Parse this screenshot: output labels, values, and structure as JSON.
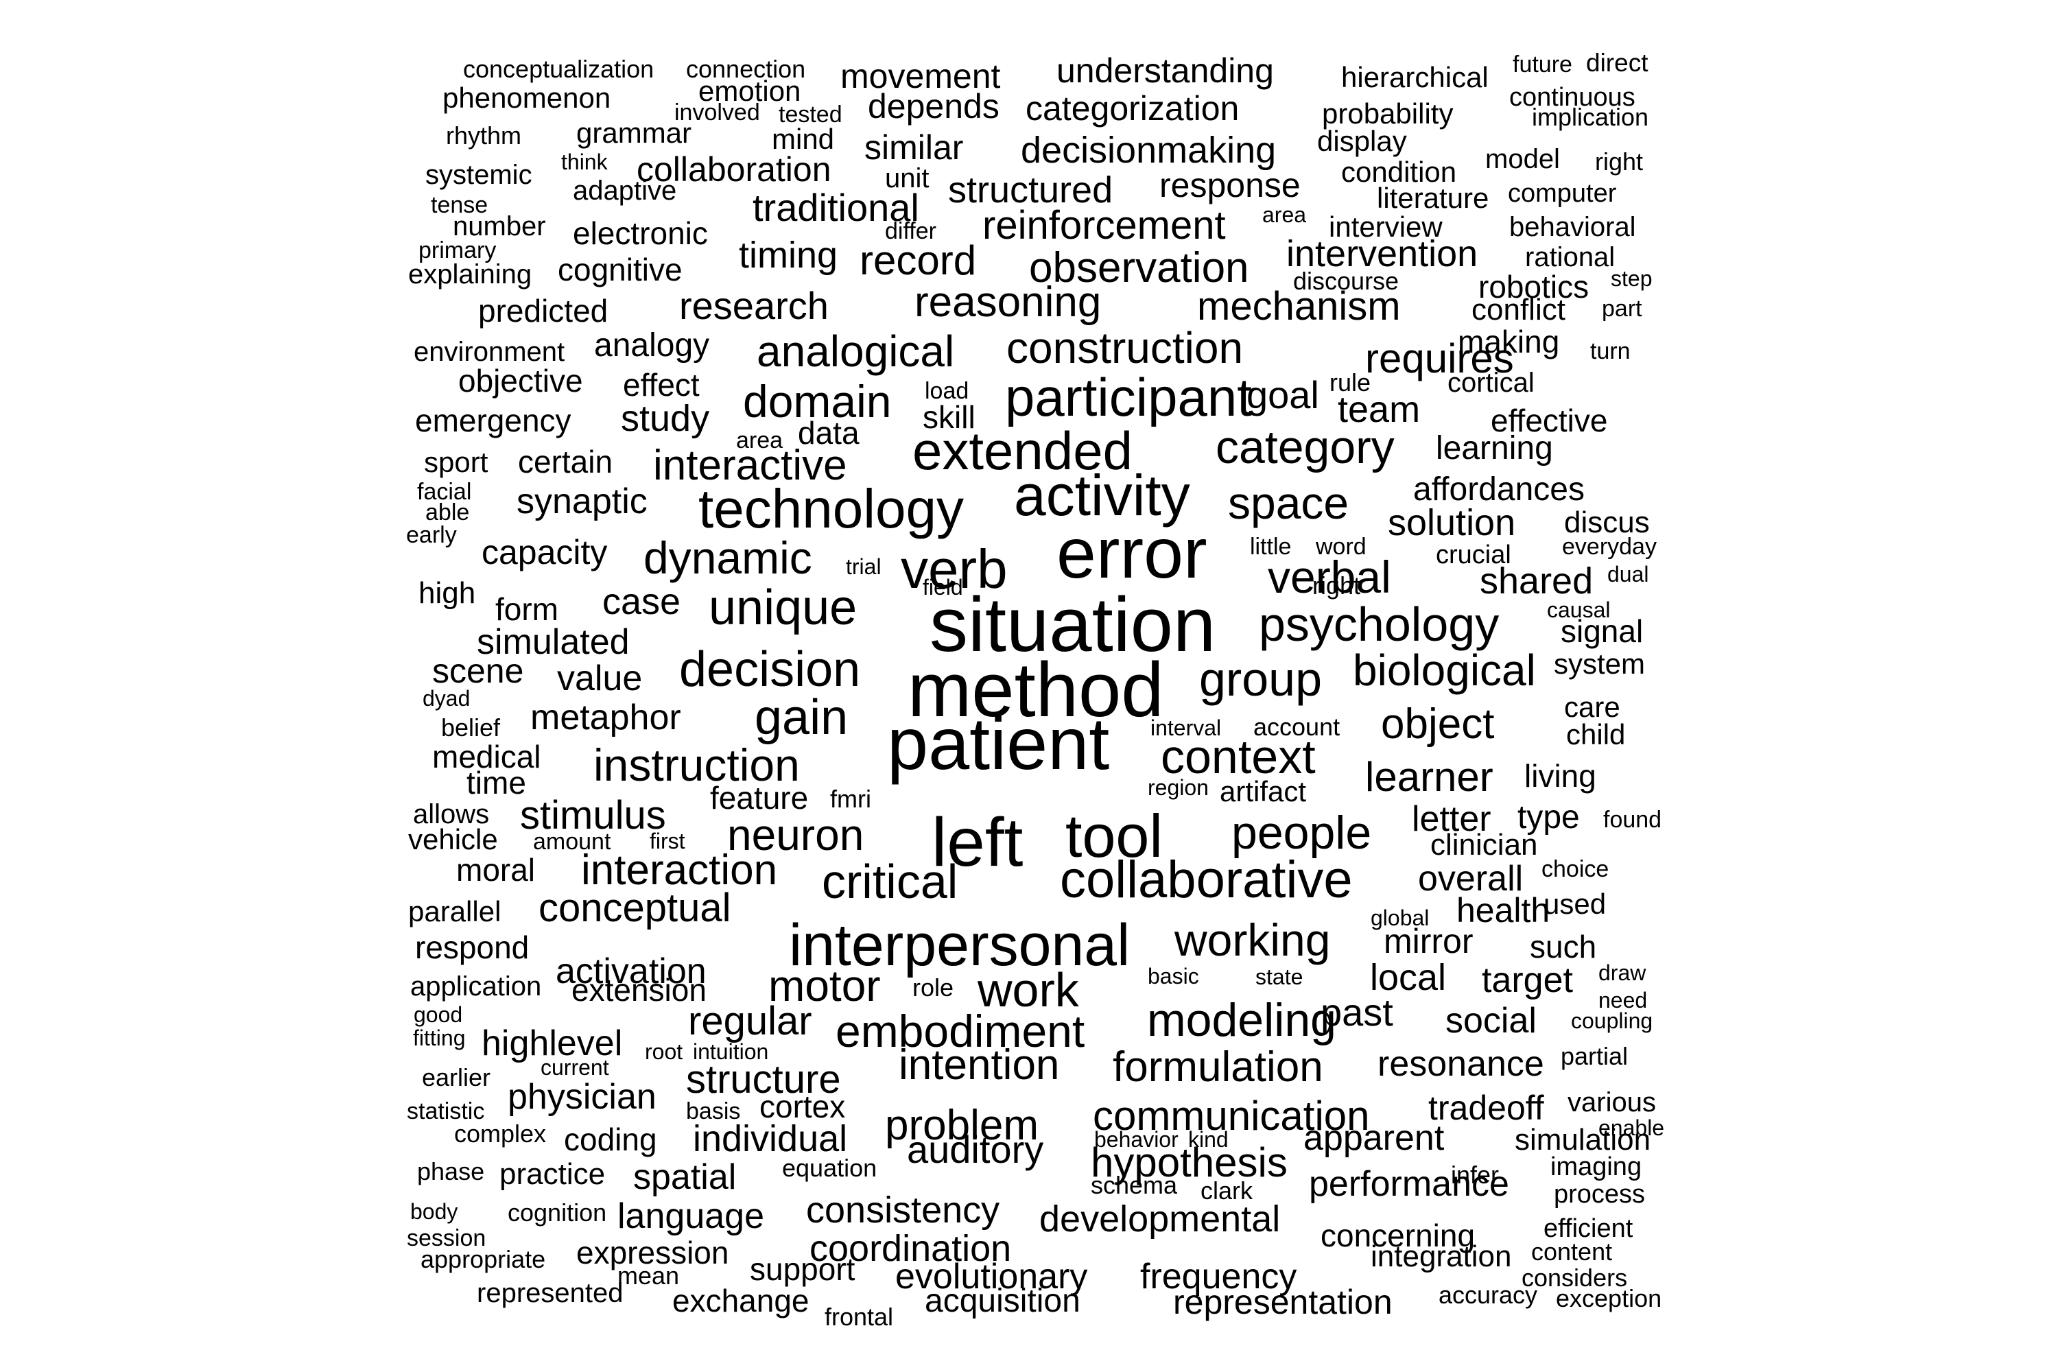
{
  "wordcloud": {
    "words": [
      "conceptualization",
      "connection",
      "future",
      "direct",
      "phenomenon",
      "emotion",
      "movement",
      "understanding",
      "hierarchical",
      "continuous",
      "involved",
      "tested",
      "depends",
      "categorization",
      "probability",
      "implication",
      "rhythm",
      "grammar",
      "mind",
      "similar",
      "decisionmaking",
      "display",
      "model",
      "right",
      "systemic",
      "think",
      "collaboration",
      "unit",
      "response",
      "condition",
      "tense",
      "adaptive",
      "structured",
      "literature",
      "computer",
      "traditional",
      "area",
      "number",
      "electronic",
      "differ",
      "reinforcement",
      "interview",
      "behavioral",
      "primary",
      "timing",
      "intervention",
      "rational",
      "explaining",
      "cognitive",
      "record",
      "observation",
      "discourse",
      "robotics",
      "step",
      "predicted",
      "research",
      "reasoning",
      "mechanism",
      "conflict",
      "part",
      "environment",
      "analogy",
      "analogical",
      "construction",
      "making",
      "requires",
      "turn",
      "objective",
      "effect",
      "load",
      "goal",
      "rule",
      "cortical",
      "emergency",
      "study",
      "domain",
      "participant",
      "skill",
      "team",
      "effective",
      "area",
      "data",
      "sport",
      "certain",
      "extended",
      "category",
      "learning",
      "facial",
      "interactive",
      "affordances",
      "able",
      "synaptic",
      "technology",
      "activity",
      "space",
      "early",
      "solution",
      "discus",
      "capacity",
      "little",
      "word",
      "everyday",
      "dynamic",
      "error",
      "crucial",
      "trial",
      "verb",
      "field",
      "right",
      "dual",
      "high",
      "verbal",
      "shared",
      "form",
      "case",
      "unique",
      "causal",
      "situation",
      "psychology",
      "simulated",
      "signal",
      "scene",
      "biological",
      "system",
      "value",
      "decision",
      "group",
      "dyad",
      "method",
      "care",
      "belief",
      "metaphor",
      "gain",
      "object",
      "interval",
      "account",
      "child",
      "medical",
      "instruction",
      "context",
      "living",
      "time",
      "patient",
      "learner",
      "region",
      "artifact",
      "feature",
      "fmri",
      "allows",
      "stimulus",
      "type",
      "found",
      "letter",
      "vehicle",
      "neuron",
      "tool",
      "people",
      "left",
      "amount",
      "first",
      "clinician",
      "moral",
      "choice",
      "interaction",
      "overall",
      "critical",
      "collaborative",
      "parallel",
      "health",
      "conceptual",
      "used",
      "global",
      "respond",
      "interpersonal",
      "working",
      "mirror",
      "such",
      "activation",
      "application",
      "extension",
      "draw",
      "basic",
      "state",
      "motor",
      "local",
      "target",
      "role",
      "work",
      "need",
      "good",
      "regular",
      "modeling",
      "past",
      "social",
      "coupling",
      "embodiment",
      "fitting",
      "highlevel",
      "current",
      "root",
      "intuition",
      "partial",
      "earlier",
      "intention",
      "formulation",
      "resonance",
      "structure",
      "physician",
      "statistic",
      "various",
      "cortex",
      "basis",
      "communication",
      "tradeoff",
      "complex",
      "problem",
      "coding",
      "enable",
      "behavior",
      "kind",
      "individual",
      "apparent",
      "simulation",
      "auditory",
      "phase",
      "hypothesis",
      "infer",
      "imaging",
      "equation",
      "practice",
      "spatial",
      "schema",
      "clark",
      "performance",
      "body",
      "process",
      "cognition",
      "consistency",
      "session",
      "language",
      "efficient",
      "developmental",
      "concerning",
      "appropriate",
      "coordination",
      "content",
      "expression",
      "integration",
      "mean",
      "support",
      "evolutionary",
      "frequency",
      "considers",
      "represented",
      "accuracy",
      "exchange",
      "acquisition",
      "representation",
      "exception",
      "frontal"
    ]
  }
}
